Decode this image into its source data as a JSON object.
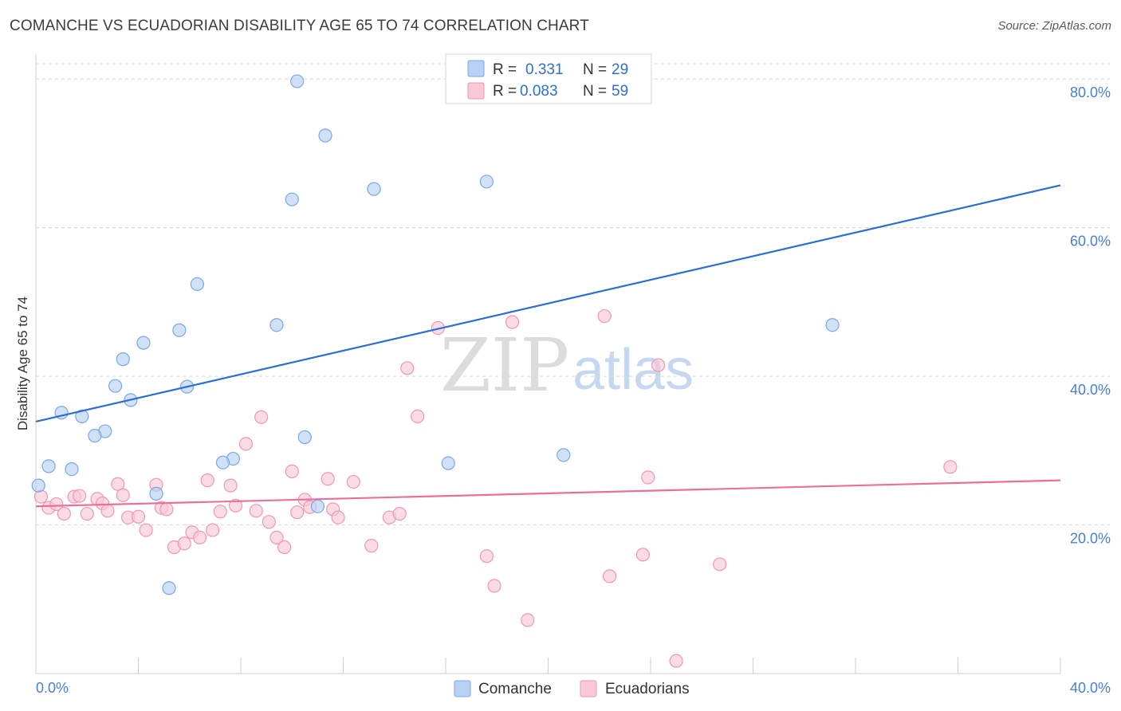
{
  "title": "COMANCHE VS ECUADORIAN DISABILITY AGE 65 TO 74 CORRELATION CHART",
  "source": "Source: ZipAtlas.com",
  "watermark": {
    "zip": "ZIP",
    "atlas": "atlas"
  },
  "legend": {
    "r_label": "R =",
    "n_label": "N =",
    "rows": [
      {
        "r": "0.331",
        "n": "29",
        "color": "#a9c8f3"
      },
      {
        "r": "0.083",
        "n": "59",
        "color": "#f6b8c8"
      }
    ]
  },
  "bottom_legend": [
    "Comanche",
    "Ecuadorians"
  ],
  "colors": {
    "comanche_fill": "#b8d1f5",
    "comanche_stroke": "#7aa7e6",
    "comanche_line": "#2a6fd0",
    "ecuador_fill": "#f9c9d6",
    "ecuador_stroke": "#ee96b0",
    "ecuador_line": "#e8709a",
    "grid": "#d8d8d8",
    "tick_text": "#4a7fcf"
  },
  "chart_data": {
    "type": "scatter",
    "title": "COMANCHE VS ECUADORIAN DISABILITY AGE 65 TO 74 CORRELATION CHART",
    "xlabel": "",
    "ylabel": "Disability Age 65 to 74",
    "xlim": [
      0,
      40
    ],
    "ylim": [
      0,
      80
    ],
    "x_tick_labels": [
      "0.0%",
      "40.0%"
    ],
    "y_ticks": [
      20,
      40,
      60,
      80
    ],
    "y_tick_labels": [
      "20.0%",
      "40.0%",
      "60.0%",
      "80.0%"
    ],
    "grid": true,
    "legend_position": "top-center",
    "series": [
      {
        "name": "Comanche",
        "r": 0.331,
        "n": 29,
        "trend": {
          "x": [
            0,
            40
          ],
          "y": [
            33.9,
            65.7
          ]
        },
        "points": [
          [
            10.2,
            79.7
          ],
          [
            11.3,
            72.4
          ],
          [
            10.0,
            63.8
          ],
          [
            13.2,
            65.2
          ],
          [
            17.6,
            66.2
          ],
          [
            6.3,
            52.4
          ],
          [
            9.4,
            46.9
          ],
          [
            5.6,
            46.2
          ],
          [
            4.2,
            44.5
          ],
          [
            3.4,
            42.3
          ],
          [
            3.1,
            38.7
          ],
          [
            5.9,
            38.6
          ],
          [
            3.7,
            36.8
          ],
          [
            1.0,
            35.1
          ],
          [
            1.8,
            34.6
          ],
          [
            2.7,
            32.6
          ],
          [
            2.3,
            32.0
          ],
          [
            10.5,
            31.8
          ],
          [
            7.7,
            28.9
          ],
          [
            7.3,
            28.4
          ],
          [
            0.5,
            27.9
          ],
          [
            1.4,
            27.5
          ],
          [
            16.1,
            28.3
          ],
          [
            20.6,
            29.4
          ],
          [
            31.1,
            46.9
          ],
          [
            0.1,
            25.3
          ],
          [
            4.7,
            24.2
          ],
          [
            11.0,
            22.5
          ],
          [
            5.2,
            11.5
          ]
        ]
      },
      {
        "name": "Ecuadorians",
        "r": 0.083,
        "n": 59,
        "trend": {
          "x": [
            0,
            40
          ],
          "y": [
            22.5,
            26.0
          ]
        },
        "points": [
          [
            0.2,
            23.8
          ],
          [
            0.5,
            22.3
          ],
          [
            0.8,
            22.8
          ],
          [
            1.1,
            21.5
          ],
          [
            1.5,
            23.8
          ],
          [
            1.7,
            23.9
          ],
          [
            2.0,
            21.5
          ],
          [
            2.4,
            23.5
          ],
          [
            2.6,
            22.9
          ],
          [
            2.8,
            21.9
          ],
          [
            3.2,
            25.5
          ],
          [
            3.4,
            24.0
          ],
          [
            3.6,
            21.0
          ],
          [
            4.0,
            21.1
          ],
          [
            4.3,
            19.3
          ],
          [
            4.7,
            25.4
          ],
          [
            4.9,
            22.3
          ],
          [
            5.1,
            22.1
          ],
          [
            5.4,
            17.0
          ],
          [
            5.8,
            17.5
          ],
          [
            6.1,
            19.0
          ],
          [
            6.4,
            18.3
          ],
          [
            6.7,
            26.0
          ],
          [
            6.9,
            19.3
          ],
          [
            7.2,
            21.8
          ],
          [
            7.6,
            25.3
          ],
          [
            7.8,
            22.6
          ],
          [
            8.2,
            30.9
          ],
          [
            8.6,
            21.9
          ],
          [
            8.8,
            34.5
          ],
          [
            9.1,
            20.4
          ],
          [
            9.4,
            18.3
          ],
          [
            9.7,
            17.0
          ],
          [
            10.0,
            27.2
          ],
          [
            10.2,
            21.7
          ],
          [
            10.5,
            23.4
          ],
          [
            10.7,
            22.4
          ],
          [
            11.4,
            26.2
          ],
          [
            11.6,
            22.1
          ],
          [
            11.8,
            21.0
          ],
          [
            12.4,
            25.8
          ],
          [
            13.1,
            17.2
          ],
          [
            13.8,
            21.0
          ],
          [
            14.2,
            21.5
          ],
          [
            14.5,
            41.1
          ],
          [
            14.9,
            34.6
          ],
          [
            15.7,
            46.5
          ],
          [
            17.6,
            15.8
          ],
          [
            17.9,
            11.8
          ],
          [
            18.6,
            47.3
          ],
          [
            19.2,
            7.2
          ],
          [
            22.2,
            48.1
          ],
          [
            22.4,
            13.1
          ],
          [
            23.7,
            16.0
          ],
          [
            23.9,
            26.4
          ],
          [
            24.3,
            41.5
          ],
          [
            25.0,
            1.7
          ],
          [
            26.7,
            14.7
          ],
          [
            35.7,
            27.8
          ]
        ]
      }
    ]
  }
}
